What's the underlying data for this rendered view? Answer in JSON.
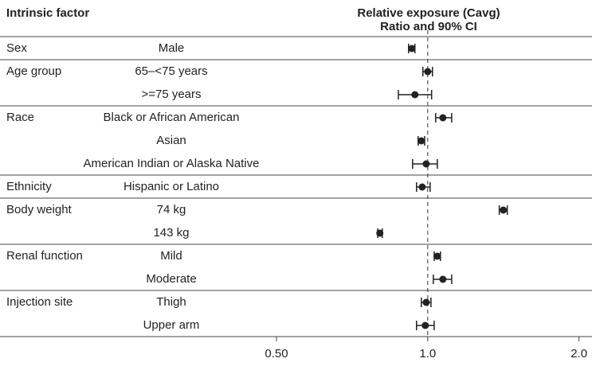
{
  "chart_data": {
    "type": "forest",
    "title": "Intrinsic factor",
    "x_label": "Relative exposure (Cavg)",
    "x_sublabel": "Ratio and 90% CI",
    "log_x": true,
    "xlim": [
      0.145,
      2.1
    ],
    "xticks": [
      {
        "value": 0.5,
        "label": "0.50"
      },
      {
        "value": 1,
        "label": "1.0"
      },
      {
        "value": 2,
        "label": "2.0"
      }
    ],
    "reference_line": 1,
    "color": "#222222",
    "groups": [
      {
        "name": "Sex",
        "rows": [
          {
            "label": "Male",
            "value": 0.93,
            "lower": 0.916,
            "upper": 0.943
          }
        ]
      },
      {
        "name": "Age group",
        "rows": [
          {
            "label": "65–<75 years",
            "value": 1.0,
            "lower": 0.978,
            "upper": 1.022
          },
          {
            "label": ">=75 years",
            "value": 0.943,
            "lower": 0.874,
            "upper": 1.018
          }
        ]
      },
      {
        "name": "Race",
        "rows": [
          {
            "label": "Black or African American",
            "value": 1.072,
            "lower": 1.037,
            "upper": 1.116
          },
          {
            "label": "Asian",
            "value": 0.971,
            "lower": 0.957,
            "upper": 0.986
          },
          {
            "label": "American Indian or Alaska Native",
            "value": 0.993,
            "lower": 0.933,
            "upper": 1.045
          }
        ]
      },
      {
        "name": "Ethnicity",
        "rows": [
          {
            "label": "Hispanic or Latino",
            "value": 0.975,
            "lower": 0.95,
            "upper": 1.011
          }
        ]
      },
      {
        "name": "Body weight",
        "rows": [
          {
            "label": "74 kg",
            "value": 1.414,
            "lower": 1.388,
            "upper": 1.44
          },
          {
            "label": "143 kg",
            "value": 0.803,
            "lower": 0.795,
            "upper": 0.812
          }
        ]
      },
      {
        "name": "Renal function",
        "rows": [
          {
            "label": "Mild",
            "value": 1.045,
            "lower": 1.03,
            "upper": 1.06
          },
          {
            "label": "Moderate",
            "value": 1.072,
            "lower": 1.026,
            "upper": 1.116
          }
        ]
      },
      {
        "name": "Injection site",
        "rows": [
          {
            "label": "Thigh",
            "value": 0.993,
            "lower": 0.971,
            "upper": 1.015
          },
          {
            "label": "Upper arm",
            "value": 0.989,
            "lower": 0.95,
            "upper": 1.03
          }
        ]
      }
    ]
  }
}
